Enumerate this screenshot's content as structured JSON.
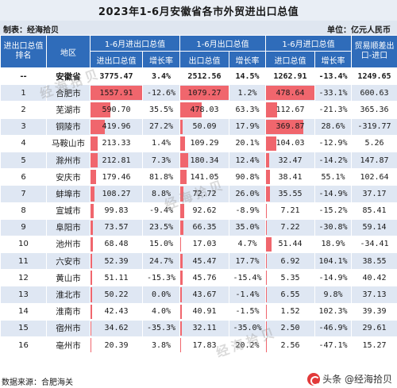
{
  "title": "2023年1-6月安徽省各市外贸进出口总值",
  "producer": "制表：经海拾贝",
  "unit": "单位：亿元人民币",
  "headers": {
    "rank": "进出口总值排名",
    "region": "地区",
    "group_total": "1-6月进出口总值",
    "group_export": "1-6月出口总值",
    "group_import": "1-6月进口总值",
    "balance": "贸易顺差出口-进口",
    "value_total": "进出口总值",
    "growth": "增长率",
    "value_export": "出口总值",
    "value_import": "进口总值"
  },
  "rows": [
    {
      "rank": "--",
      "region": "安徽省",
      "total": "3775.47",
      "total_g": "3.4%",
      "export": "2512.56",
      "export_g": "14.5%",
      "import": "1262.91",
      "import_g": "-13.4%",
      "balance": "1249.65"
    },
    {
      "rank": "1",
      "region": "合肥市",
      "total": "1557.91",
      "total_g": "-12.6%",
      "export": "1079.27",
      "export_g": "1.2%",
      "import": "478.64",
      "import_g": "-33.1%",
      "balance": "600.63"
    },
    {
      "rank": "2",
      "region": "芜湖市",
      "total": "590.70",
      "total_g": "35.5%",
      "export": "478.03",
      "export_g": "63.3%",
      "import": "112.67",
      "import_g": "-21.3%",
      "balance": "365.36"
    },
    {
      "rank": "3",
      "region": "铜陵市",
      "total": "419.96",
      "total_g": "27.2%",
      "export": "50.09",
      "export_g": "17.9%",
      "import": "369.87",
      "import_g": "28.6%",
      "balance": "-319.77"
    },
    {
      "rank": "4",
      "region": "马鞍山市",
      "total": "213.33",
      "total_g": "1.4%",
      "export": "109.29",
      "export_g": "20.1%",
      "import": "104.03",
      "import_g": "-12.9%",
      "balance": "5.26"
    },
    {
      "rank": "5",
      "region": "滁州市",
      "total": "212.81",
      "total_g": "7.3%",
      "export": "180.34",
      "export_g": "12.4%",
      "import": "32.47",
      "import_g": "-14.2%",
      "balance": "147.87"
    },
    {
      "rank": "6",
      "region": "安庆市",
      "total": "179.46",
      "total_g": "81.8%",
      "export": "141.05",
      "export_g": "90.8%",
      "import": "38.41",
      "import_g": "55.1%",
      "balance": "102.64"
    },
    {
      "rank": "7",
      "region": "蚌埠市",
      "total": "108.27",
      "total_g": "8.8%",
      "export": "72.72",
      "export_g": "26.0%",
      "import": "35.55",
      "import_g": "-14.9%",
      "balance": "37.17"
    },
    {
      "rank": "8",
      "region": "宣城市",
      "total": "99.83",
      "total_g": "-9.4%",
      "export": "92.62",
      "export_g": "-8.9%",
      "import": "7.21",
      "import_g": "-15.2%",
      "balance": "85.41"
    },
    {
      "rank": "9",
      "region": "阜阳市",
      "total": "73.57",
      "total_g": "23.5%",
      "export": "66.35",
      "export_g": "35.0%",
      "import": "7.22",
      "import_g": "-30.8%",
      "balance": "59.14"
    },
    {
      "rank": "10",
      "region": "池州市",
      "total": "68.48",
      "total_g": "15.0%",
      "export": "17.03",
      "export_g": "4.7%",
      "import": "51.44",
      "import_g": "18.9%",
      "balance": "-34.41"
    },
    {
      "rank": "11",
      "region": "六安市",
      "total": "52.39",
      "total_g": "24.7%",
      "export": "45.47",
      "export_g": "17.7%",
      "import": "6.92",
      "import_g": "104.1%",
      "balance": "38.55"
    },
    {
      "rank": "12",
      "region": "黄山市",
      "total": "51.11",
      "total_g": "-15.3%",
      "export": "45.76",
      "export_g": "-15.4%",
      "import": "5.35",
      "import_g": "-14.9%",
      "balance": "40.42"
    },
    {
      "rank": "13",
      "region": "淮北市",
      "total": "50.22",
      "total_g": "0.0%",
      "export": "43.67",
      "export_g": "-1.4%",
      "import": "6.55",
      "import_g": "9.8%",
      "balance": "37.13"
    },
    {
      "rank": "14",
      "region": "淮南市",
      "total": "42.43",
      "total_g": "4.0%",
      "export": "40.91",
      "export_g": "-1.5%",
      "import": "1.52",
      "import_g": "102.3%",
      "balance": "39.39"
    },
    {
      "rank": "15",
      "region": "宿州市",
      "total": "34.62",
      "total_g": "-35.3%",
      "export": "32.11",
      "export_g": "-35.0%",
      "import": "2.50",
      "import_g": "-46.9%",
      "balance": "29.61"
    },
    {
      "rank": "16",
      "region": "亳州市",
      "total": "20.39",
      "total_g": "3.8%",
      "export": "17.83",
      "export_g": "20.2%",
      "import": "2.56",
      "import_g": "-47.1%",
      "balance": "15.27"
    }
  ],
  "bar_max": {
    "total": 1557.91,
    "export": 1079.27,
    "import": 478.64
  },
  "footer": {
    "source": "数据来源：合肥海关",
    "brand": "头条 @经海拾贝"
  },
  "watermark": "经海拾贝",
  "colors": {
    "header": "#2f6cba",
    "bar": "#f0666d",
    "stripe": "#dfe7f3"
  }
}
